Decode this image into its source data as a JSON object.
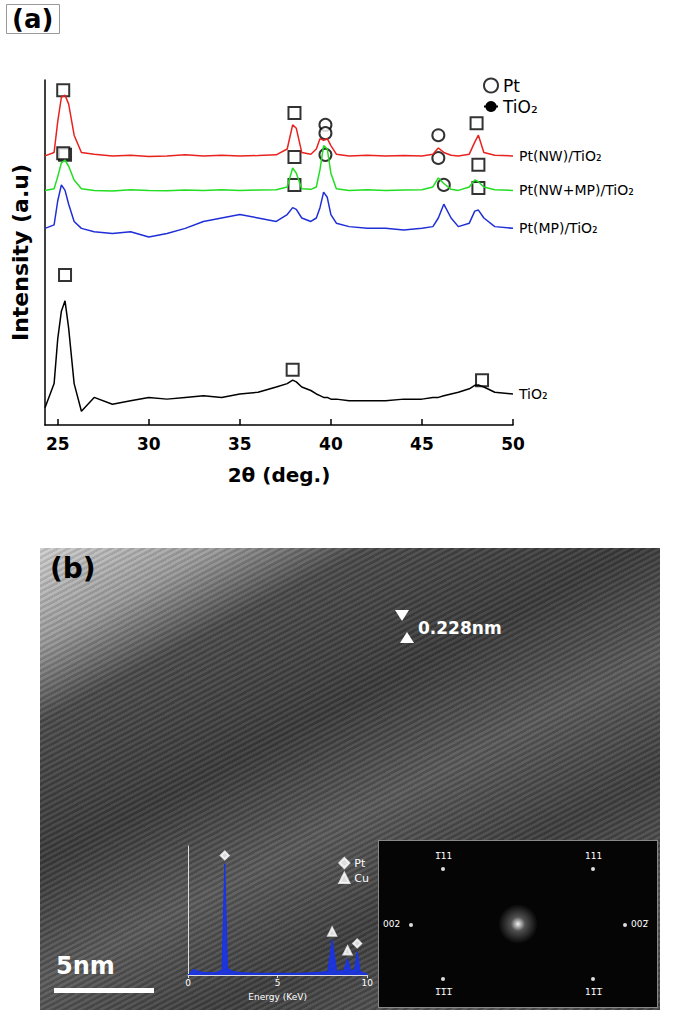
{
  "chart_data": [
    {
      "type": "line",
      "title": "(a)",
      "x_label": "2θ (deg.)",
      "y_label": "Intensity (a.u)",
      "x": [
        24.3,
        24.8,
        25.0,
        25.2,
        25.4,
        25.6,
        25.9,
        26.3,
        27,
        28,
        29,
        30,
        31,
        32,
        33,
        34,
        35,
        36,
        37,
        37.6,
        37.9,
        38.1,
        38.4,
        38.9,
        39.2,
        39.4,
        39.6,
        39.8,
        40.0,
        40.3,
        41,
        42,
        43,
        44,
        45,
        45.6,
        45.9,
        46.2,
        46.6,
        47,
        47.6,
        47.9,
        48.1,
        48.4,
        49,
        50
      ],
      "series": [
        {
          "name": "Pt(NW)/TiO₂",
          "type": "line",
          "color": "#e8231f",
          "values": [
            78,
            79,
            88,
            95,
            95.6,
            93,
            84,
            79,
            78.5,
            78,
            78.2,
            77.8,
            78,
            78.3,
            78,
            78.2,
            78,
            78.1,
            78.3,
            80,
            87,
            86,
            79,
            78.5,
            80,
            83,
            82.5,
            83,
            81,
            78.5,
            78,
            78.2,
            78,
            78.1,
            78,
            78.5,
            80.3,
            79,
            78.2,
            78,
            78.5,
            82,
            84,
            79,
            78.2,
            78
          ]
        },
        {
          "name": "Pt(NW+MP)/TiO₂",
          "type": "line",
          "color": "#22dd22",
          "values": [
            68,
            68.5,
            72,
            76,
            76.8,
            75,
            71,
            68.5,
            68,
            67.8,
            68.2,
            68,
            67.9,
            68.1,
            68,
            68.2,
            68,
            68.1,
            68.2,
            69,
            74.5,
            73,
            68.5,
            68.3,
            69,
            74,
            81,
            80,
            73,
            68.5,
            68,
            68.2,
            68,
            68.1,
            68.2,
            69,
            71.6,
            70,
            68.3,
            68,
            69,
            71,
            70.5,
            69,
            68.2,
            68
          ]
        },
        {
          "name": "Pt(MP)/TiO₂",
          "type": "line",
          "color": "#1f2fd6",
          "values": [
            57,
            58,
            65,
            69.6,
            68,
            64,
            59,
            57,
            56,
            55.5,
            56,
            54.5,
            55.5,
            57,
            59,
            60,
            61,
            60,
            59,
            61,
            63,
            62.5,
            60,
            59,
            60,
            63,
            67.5,
            66,
            61,
            58.5,
            57.5,
            57,
            57,
            56.5,
            57,
            57.5,
            60,
            64,
            60,
            57.5,
            58.5,
            62,
            62.3,
            60,
            57.5,
            57
          ]
        },
        {
          "name": "TiO₂",
          "type": "line",
          "color": "#000000",
          "values": [
            5,
            12,
            25,
            33,
            36,
            28,
            12,
            4,
            8,
            6,
            7,
            8,
            7.5,
            8,
            8.5,
            8,
            9,
            9.5,
            11,
            12,
            13,
            12.5,
            11,
            10,
            9,
            8.5,
            8,
            8,
            7.5,
            7.5,
            7,
            7,
            7,
            7.5,
            7.5,
            8,
            8,
            8.5,
            9,
            9.5,
            10.5,
            11.5,
            11.6,
            11,
            9.5,
            9
          ]
        },
        {
          "name": "Pt",
          "type": "scatter",
          "marker": "circle",
          "color": "#000000",
          "x": [
            39.7,
            45.9,
            39.7,
            45.9,
            39.7,
            46.2
          ],
          "values": [
            87,
            84,
            84.6,
            77.4,
            78.3,
            69.6
          ]
        },
        {
          "name": "TiO₂",
          "type": "scatter",
          "marker": "square",
          "color": "#000000",
          "x": [
            25.3,
            38.0,
            48.0,
            25.4,
            38.0,
            48.1,
            25.3,
            38.0,
            48.1,
            25.4,
            37.9,
            48.3
          ],
          "values": [
            97,
            90.4,
            87.5,
            78.3,
            77.7,
            75.4,
            78.8,
            69.6,
            68.7,
            43.5,
            16,
            13
          ]
        }
      ],
      "xlim": [
        24.3,
        50
      ],
      "xticks": [
        25,
        30,
        35,
        40,
        45,
        50
      ],
      "ylim": [
        0,
        100
      ],
      "tick_labels": "x",
      "grid": false,
      "legend": "upper right"
    },
    {
      "type": "line",
      "x_label": "Energy (KeV)",
      "x": [
        0,
        0.3,
        0.6,
        1,
        1.5,
        1.9,
        2.05,
        2.2,
        2.5,
        3,
        4,
        5,
        6,
        7,
        7.8,
        8.04,
        8.3,
        8.7,
        8.9,
        9.1,
        9.3,
        9.44,
        9.6,
        10
      ],
      "series": [
        {
          "type": "area",
          "color": "#1633f0",
          "values": [
            0,
            5,
            3,
            2,
            2,
            4,
            95,
            6,
            3,
            2,
            1.5,
            1.5,
            1.5,
            2,
            3,
            30,
            3,
            4,
            14,
            3,
            5,
            20,
            3,
            1
          ]
        },
        {
          "name": "Pt",
          "type": "scatter",
          "marker": "diamond",
          "color": "#ffffff",
          "x": [
            2.05,
            9.44
          ],
          "values": [
            102,
            27
          ]
        },
        {
          "name": "Cu",
          "type": "scatter",
          "marker": "triangle",
          "color": "#ffffff",
          "x": [
            8.04,
            8.9
          ],
          "values": [
            37,
            21
          ]
        }
      ],
      "xlim": [
        0,
        10
      ],
      "xticks": [
        0,
        5,
        10
      ],
      "ylim": [
        0,
        110
      ],
      "tick_labels": "x",
      "grid": false,
      "legend": "upper right"
    }
  ],
  "panel_b": {
    "label": "(b)",
    "lattice_spacing": "0.228nm",
    "scale_bar": "5nm",
    "fft_labels": {
      "top_left": "1̅11",
      "top_right": "111",
      "left": "002",
      "right": "002̅",
      "bottom_left": "1̅1̅1̅",
      "bottom_right": "11̅1̅"
    }
  }
}
